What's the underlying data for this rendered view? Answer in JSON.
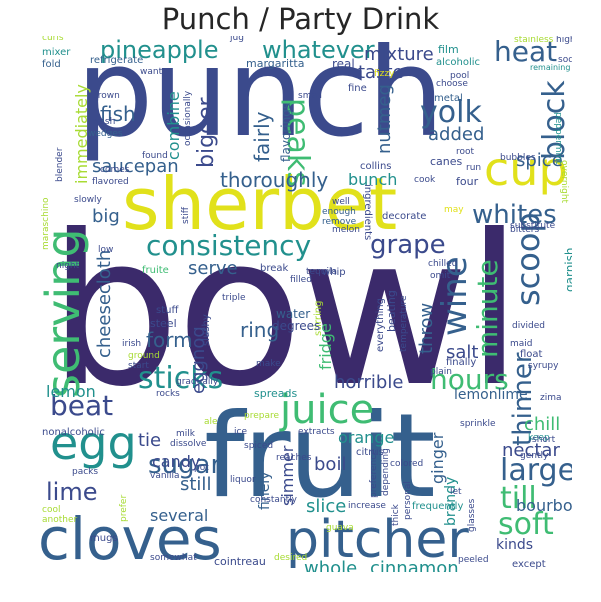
{
  "title": "Punch / Party Drink",
  "colors": {
    "dark_purple": "#3b2a6b",
    "indigo": "#3b4a8c",
    "slate": "#35608d",
    "teal": "#21908d",
    "green": "#3fbc73",
    "lime": "#a8db34",
    "yellow": "#e1e11b",
    "violet": "#481a6c"
  },
  "words": {
    "bowl": "bowl",
    "punch": "punch",
    "fruit": "fruit",
    "sherbet": "sherbet",
    "cloves": "cloves",
    "pitcher": "pitcher",
    "juice": "juice",
    "serving": "serving",
    "egg": "egg",
    "cup": "cup",
    "consistency": "consistency",
    "pineapple": "pineapple",
    "whatever": "whatever",
    "heat": "heat",
    "block": "block",
    "peaks": "peaks",
    "yolk": "yolk",
    "grape": "grape",
    "whites": "whites",
    "scoop": "scoop",
    "wine": "wine",
    "minute": "minute",
    "hours": "hours",
    "thinner": "thinner",
    "sticks": "sticks",
    "beat": "beat",
    "sugar": "sugar",
    "lime": "lime",
    "large": "large",
    "till": "till",
    "soft": "soft",
    "whole": "whole",
    "cinnamon": "cinnamon",
    "mixture": "mixture",
    "taste": "taste",
    "bigger": "bigger",
    "thoroughly": "thoroughly",
    "fairly": "fairly",
    "added": "added",
    "spice": "spice",
    "nutmeg": "nutmeg",
    "immediately": "immediately",
    "fish": "fish",
    "saucepan": "saucepan",
    "combine": "combine",
    "big": "big",
    "serve": "serve",
    "bunch": "bunch",
    "cheesecloth": "cheesecloth",
    "form": "form",
    "ring": "ring",
    "eggnog": "eggnog",
    "salt": "salt",
    "throw": "throw",
    "fridge": "fridge",
    "horrible": "horrible",
    "lemonlime": "lemonlime",
    "lemon": "lemon",
    "orange": "orange",
    "chill": "chill",
    "nectar": "nectar",
    "ginger": "ginger",
    "bourbon": "bourbon",
    "candy": "candy",
    "tie": "tie",
    "still": "still",
    "boil": "boil",
    "slice": "slice",
    "simmer": "simmer",
    "several": "several",
    "finely": "finely",
    "brandy": "brandy",
    "kinds": "kinds",
    "margaritta": "margaritta",
    "real": "real",
    "film": "film",
    "alcoholic": "alcoholic",
    "stainless": "stainless",
    "high": "high",
    "soda": "soda",
    "remaining": "remaining",
    "refrigerate": "refrigerate",
    "mixer": "mixer",
    "fold": "fold",
    "want": "want",
    "curls": "curls",
    "jug": "jug",
    "brown": "brown",
    "wash": "wash",
    "wedges": "wedges",
    "blender": "blender",
    "occasionally": "occasionally",
    "flavorings": "flavorings",
    "collins": "collins",
    "fizzy": "fizzy",
    "fine": "fine",
    "small": "small",
    "metal": "metal",
    "canes": "canes",
    "root": "root",
    "four": "four",
    "cook": "cook",
    "peppermint": "peppermint",
    "bubbles": "bubbles",
    "overnight": "overnight",
    "substitute": "substitute",
    "bitters": "bitters",
    "decorate": "decorate",
    "may": "may",
    "ingredients": "ingredients",
    "melon": "melon",
    "remove": "remove",
    "enough": "enough",
    "well": "well",
    "flavored": "flavored",
    "comes": "comes",
    "found": "found",
    "low": "low",
    "tequila": "tequila",
    "break": "break",
    "filled": "filled",
    "whip": "whip",
    "chilled": "chilled",
    "omit": "omit",
    "garnish": "garnish",
    "divided": "divided",
    "maid": "maid",
    "float": "float",
    "syrupy": "syrupy",
    "plain": "plain",
    "finally": "finally",
    "temperature": "temperature",
    "everything": "everything",
    "beating": "beating",
    "stirring": "stirring",
    "water": "water",
    "degrees": "degrees",
    "steel": "steel",
    "stuff": "stuff",
    "make": "make",
    "triple": "triple",
    "slushy": "slushy",
    "irish": "irish",
    "ground": "ground",
    "start": "start",
    "gradually": "gradually",
    "spreads": "spreads",
    "rocks": "rocks",
    "ale": "ale",
    "prepare": "prepare",
    "milk": "milk",
    "dissolve": "dissolve",
    "nonalcoholic": "nonalcoholic",
    "ice": "ice",
    "spiced": "spiced",
    "citrus": "citrus",
    "extracts": "extracts",
    "colored": "colored",
    "sprinkle": "sprinkle",
    "keep": "keep",
    "short": "short",
    "gently": "gently",
    "zima": "zima",
    "night": "night",
    "packs": "packs",
    "vanilla": "vanilla",
    "pot": "pot",
    "cool": "cool",
    "another": "another",
    "mugs": "mugs",
    "prefer": "prefer",
    "somewhat": "somewhat",
    "cointreau": "cointreau",
    "desired": "desired",
    "guava": "guava",
    "frequently": "frequently",
    "increase": "increase",
    "constantly": "constantly",
    "liquor": "liquor",
    "thick": "thick",
    "personal": "personal",
    "depending": "depending",
    "preference": "preference",
    "glasses": "glasses",
    "let": "let",
    "except": "except",
    "peeled": "peeled",
    "choose": "choose",
    "pool": "pool",
    "stiff": "stiff",
    "slowly": "slowly",
    "fruite": "fruite",
    "maraschino": "maraschino",
    "sorbet": "sorbet",
    "run": "run",
    "reaches": "reaches"
  }
}
